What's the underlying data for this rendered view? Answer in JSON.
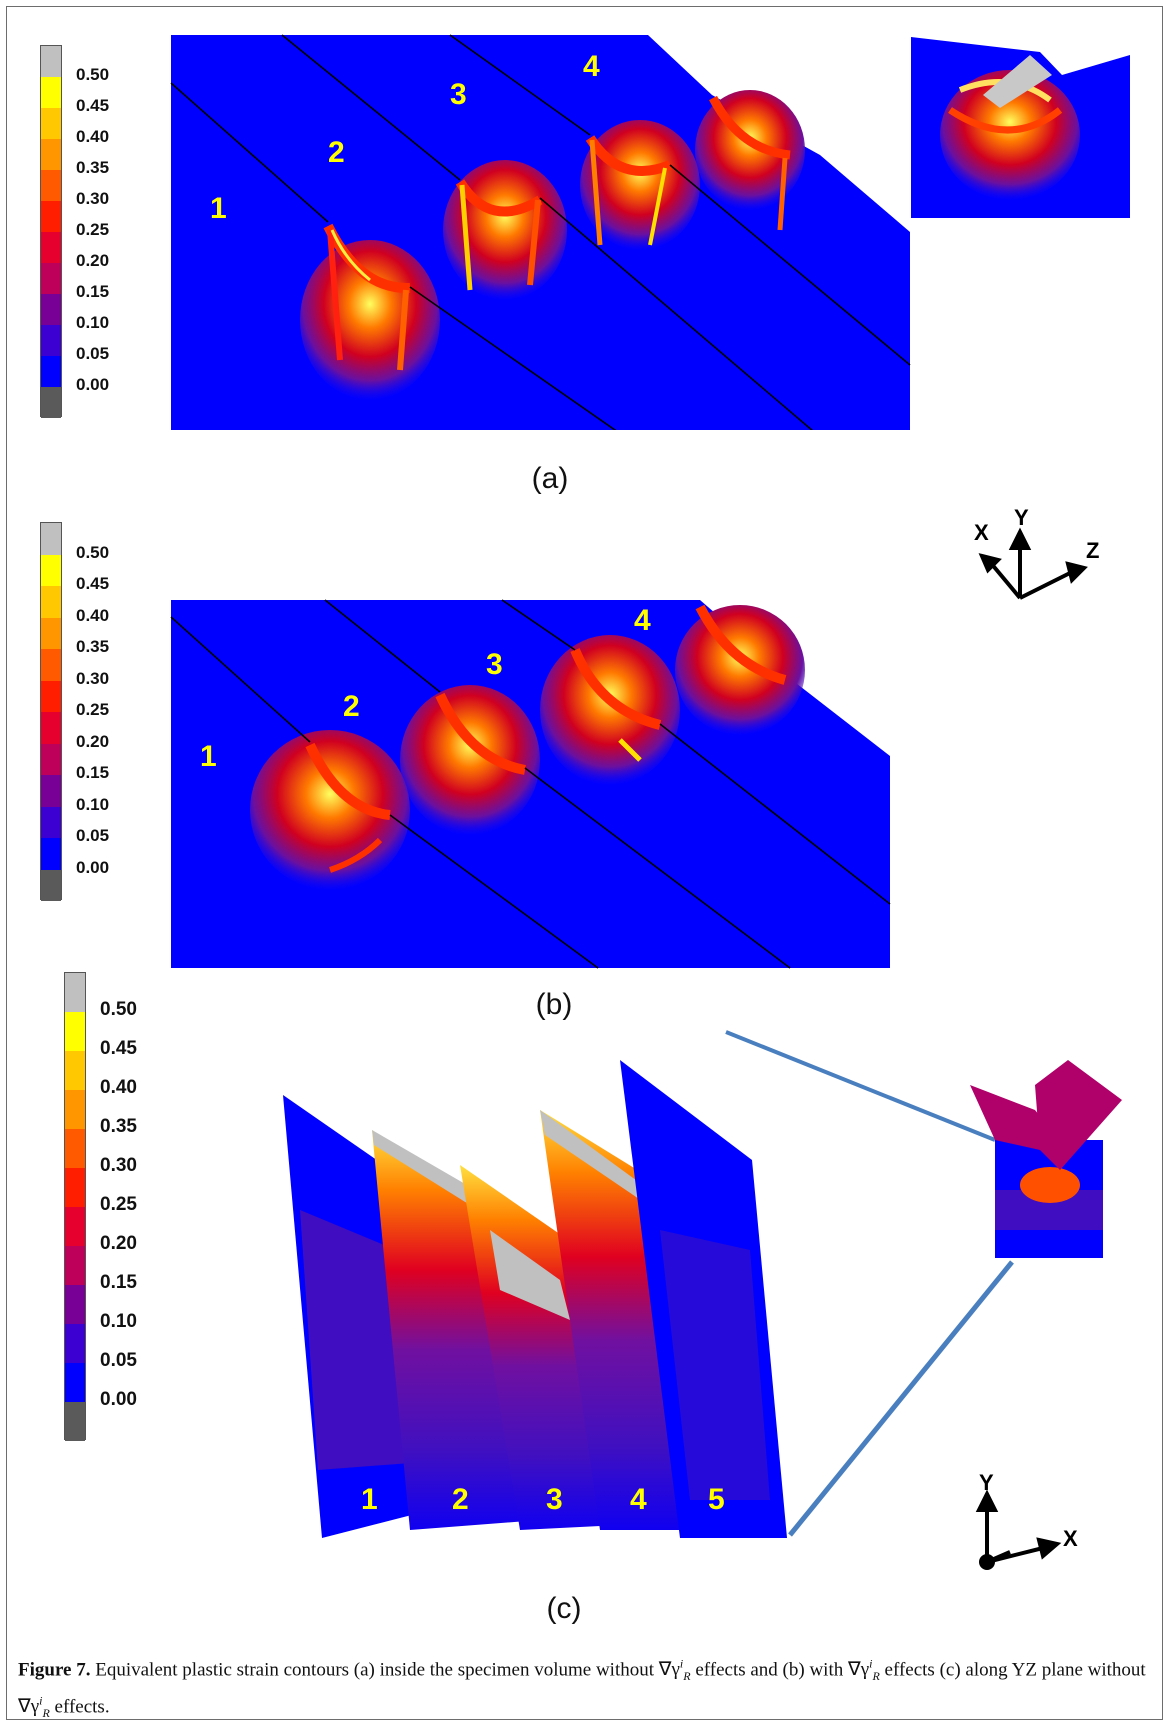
{
  "legend": {
    "levels": [
      "0.50",
      "0.45",
      "0.40",
      "0.35",
      "0.30",
      "0.25",
      "0.20",
      "0.15",
      "0.10",
      "0.05",
      "0.00"
    ],
    "colors": [
      "#c0c0c0",
      "#ffff00",
      "#ffc800",
      "#ff9600",
      "#ff5a00",
      "#ff1e00",
      "#e6002d",
      "#be005a",
      "#780096",
      "#3c00d2",
      "#0000ff",
      "#5a5a5a"
    ]
  },
  "panel_a": {
    "label": "(a)",
    "numbers": [
      "1",
      "2",
      "3",
      "4"
    ]
  },
  "panel_b": {
    "label": "(b)",
    "numbers": [
      "1",
      "2",
      "3",
      "4"
    ]
  },
  "panel_c": {
    "label": "(c)",
    "numbers": [
      "1",
      "2",
      "3",
      "4",
      "5"
    ]
  },
  "axes_xyz": {
    "x": "X",
    "y": "Y",
    "z": "Z"
  },
  "axes_yx": {
    "x": "X",
    "y": "Y"
  },
  "caption": {
    "figure": "Figure 7.",
    "text1": " Equivalent plastic strain contours (a) inside the specimen volume without ",
    "grad": "∇γ",
    "sup": "i",
    "sub": "R",
    "text2": " effects and (b) with ",
    "text3": " effects (c) along YZ plane without ",
    "text4": " effects."
  }
}
